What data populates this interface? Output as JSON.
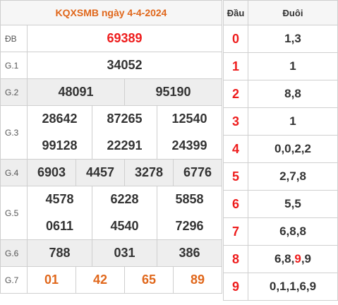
{
  "title": "KQXSMB ngày 4-4-2024",
  "labels": {
    "db": "ĐB",
    "g1": "G.1",
    "g2": "G.2",
    "g3": "G.3",
    "g4": "G.4",
    "g5": "G.5",
    "g6": "G.6",
    "g7": "G.7"
  },
  "prizes": {
    "db": "69389",
    "g1": "34052",
    "g2": [
      "48091",
      "95190"
    ],
    "g3": [
      "28642",
      "87265",
      "12540",
      "99128",
      "22291",
      "24399"
    ],
    "g4": [
      "6903",
      "4457",
      "3278",
      "6776"
    ],
    "g5": [
      "4578",
      "6228",
      "5858",
      "0611",
      "4540",
      "7296"
    ],
    "g6": [
      "788",
      "031",
      "386"
    ],
    "g7": [
      "01",
      "42",
      "65",
      "89"
    ]
  },
  "table2": {
    "head_label": "Đầu",
    "tail_label": "Đuôi",
    "rows": [
      {
        "head": "0",
        "tail": "1,3"
      },
      {
        "head": "1",
        "tail": "1"
      },
      {
        "head": "2",
        "tail": "8,8"
      },
      {
        "head": "3",
        "tail": "1"
      },
      {
        "head": "4",
        "tail": "0,0,2,2"
      },
      {
        "head": "5",
        "tail": "2,7,8"
      },
      {
        "head": "6",
        "tail": "5,5"
      },
      {
        "head": "7",
        "tail": "6,8,8"
      },
      {
        "head": "8",
        "tail_a": "6,8,",
        "tail_hl": "9",
        "tail_b": ",9"
      },
      {
        "head": "9",
        "tail": "0,1,1,6,9"
      }
    ]
  },
  "colors": {
    "accent": "#e0671b",
    "special": "#ee1c1c",
    "band": "#eeeeee",
    "border": "#cfcfcf"
  }
}
